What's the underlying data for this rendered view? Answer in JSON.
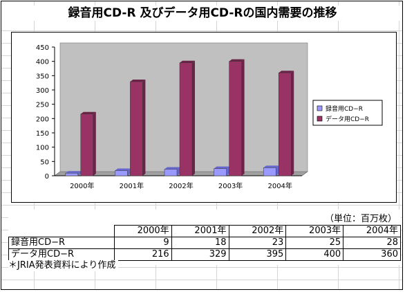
{
  "title": "録音用CD-R 及びデータ用CD-Rの国内需要の推移",
  "unit_label": "（単位：百万枚）",
  "source_note": "＊JRIA発表資料により作成",
  "colors": {
    "series1": "#9999ff",
    "series2": "#993366",
    "plot_bg": "#c0c0c0"
  },
  "table": {
    "years": [
      "2000年",
      "2001年",
      "2002年",
      "2003年",
      "2004年"
    ],
    "rows": [
      {
        "label": "録音用CD−R",
        "values": [
          "9",
          "18",
          "23",
          "25",
          "28"
        ]
      },
      {
        "label": "データ用CD−R",
        "values": [
          "216",
          "329",
          "395",
          "400",
          "360"
        ]
      }
    ]
  },
  "chart_data": {
    "type": "bar",
    "categories": [
      "2000年",
      "2001年",
      "2002年",
      "2003年",
      "2004年"
    ],
    "series": [
      {
        "name": "録音用CD−R",
        "values": [
          9,
          18,
          23,
          25,
          28
        ]
      },
      {
        "name": "データ用CD−R",
        "values": [
          216,
          329,
          395,
          400,
          360
        ]
      }
    ],
    "ylim": [
      0,
      450
    ],
    "yticks": [
      "0",
      "50",
      "100",
      "150",
      "200",
      "250",
      "300",
      "350",
      "400",
      "450"
    ],
    "grid": false,
    "legend": "right"
  }
}
